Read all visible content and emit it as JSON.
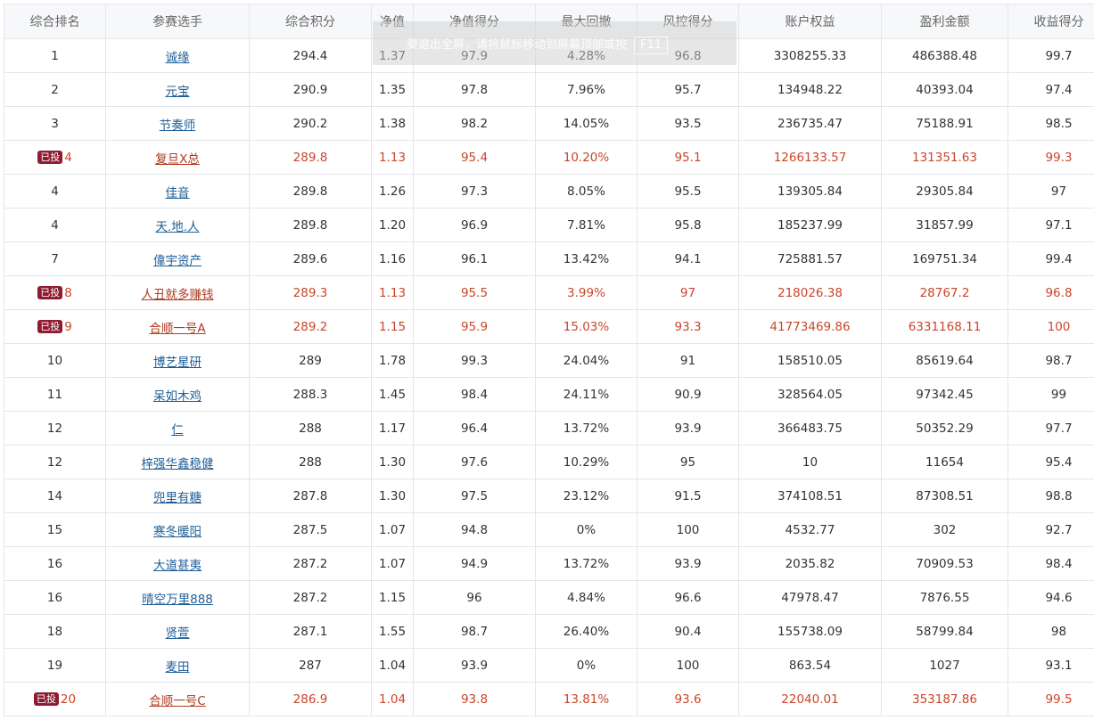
{
  "columns": [
    "综合排名",
    "参赛选手",
    "综合积分",
    "净值",
    "净值得分",
    "最大回撤",
    "风控得分",
    "账户权益",
    "盈利金额",
    "收益得分"
  ],
  "badge_label": "已投",
  "toast": {
    "text": "要退出全屏，请将鼠标移动到屏幕顶部或按",
    "key": "F11"
  },
  "rows": [
    {
      "rank": "1",
      "name": "诚缘",
      "score": "294.4",
      "nav": "1.37",
      "nav_score": "97.9",
      "max_dd": "4.28%",
      "risk": "96.8",
      "equity": "3308255.33",
      "profit": "486388.48",
      "ret": "99.7",
      "hl": false
    },
    {
      "rank": "2",
      "name": "元宝",
      "score": "290.9",
      "nav": "1.35",
      "nav_score": "97.8",
      "max_dd": "7.96%",
      "risk": "95.7",
      "equity": "134948.22",
      "profit": "40393.04",
      "ret": "97.4",
      "hl": false
    },
    {
      "rank": "3",
      "name": "节奏师",
      "score": "290.2",
      "nav": "1.38",
      "nav_score": "98.2",
      "max_dd": "14.05%",
      "risk": "93.5",
      "equity": "236735.47",
      "profit": "75188.91",
      "ret": "98.5",
      "hl": false
    },
    {
      "rank": "4",
      "name": "复旦X总",
      "score": "289.8",
      "nav": "1.13",
      "nav_score": "95.4",
      "max_dd": "10.20%",
      "risk": "95.1",
      "equity": "1266133.57",
      "profit": "131351.63",
      "ret": "99.3",
      "hl": true
    },
    {
      "rank": "4",
      "name": "佳音",
      "score": "289.8",
      "nav": "1.26",
      "nav_score": "97.3",
      "max_dd": "8.05%",
      "risk": "95.5",
      "equity": "139305.84",
      "profit": "29305.84",
      "ret": "97",
      "hl": false
    },
    {
      "rank": "4",
      "name": "天.地.人",
      "score": "289.8",
      "nav": "1.20",
      "nav_score": "96.9",
      "max_dd": "7.81%",
      "risk": "95.8",
      "equity": "185237.99",
      "profit": "31857.99",
      "ret": "97.1",
      "hl": false
    },
    {
      "rank": "7",
      "name": "偉宇资产",
      "score": "289.6",
      "nav": "1.16",
      "nav_score": "96.1",
      "max_dd": "13.42%",
      "risk": "94.1",
      "equity": "725881.57",
      "profit": "169751.34",
      "ret": "99.4",
      "hl": false
    },
    {
      "rank": "8",
      "name": "人丑就多赚钱",
      "score": "289.3",
      "nav": "1.13",
      "nav_score": "95.5",
      "max_dd": "3.99%",
      "risk": "97",
      "equity": "218026.38",
      "profit": "28767.2",
      "ret": "96.8",
      "hl": true
    },
    {
      "rank": "9",
      "name": "合顺一号A",
      "score": "289.2",
      "nav": "1.15",
      "nav_score": "95.9",
      "max_dd": "15.03%",
      "risk": "93.3",
      "equity": "41773469.86",
      "profit": "6331168.11",
      "ret": "100",
      "hl": true
    },
    {
      "rank": "10",
      "name": "博艺星研",
      "score": "289",
      "nav": "1.78",
      "nav_score": "99.3",
      "max_dd": "24.04%",
      "risk": "91",
      "equity": "158510.05",
      "profit": "85619.64",
      "ret": "98.7",
      "hl": false
    },
    {
      "rank": "11",
      "name": "呆如木鸡",
      "score": "288.3",
      "nav": "1.45",
      "nav_score": "98.4",
      "max_dd": "24.11%",
      "risk": "90.9",
      "equity": "328564.05",
      "profit": "97342.45",
      "ret": "99",
      "hl": false
    },
    {
      "rank": "12",
      "name": "仁",
      "score": "288",
      "nav": "1.17",
      "nav_score": "96.4",
      "max_dd": "13.72%",
      "risk": "93.9",
      "equity": "366483.75",
      "profit": "50352.29",
      "ret": "97.7",
      "hl": false
    },
    {
      "rank": "12",
      "name": "梓强华鑫稳健",
      "score": "288",
      "nav": "1.30",
      "nav_score": "97.6",
      "max_dd": "10.29%",
      "risk": "95",
      "equity": "10",
      "profit": "11654",
      "ret": "95.4",
      "hl": false
    },
    {
      "rank": "14",
      "name": "兜里有糖",
      "score": "287.8",
      "nav": "1.30",
      "nav_score": "97.5",
      "max_dd": "23.12%",
      "risk": "91.5",
      "equity": "374108.51",
      "profit": "87308.51",
      "ret": "98.8",
      "hl": false
    },
    {
      "rank": "15",
      "name": "寒冬暖阳",
      "score": "287.5",
      "nav": "1.07",
      "nav_score": "94.8",
      "max_dd": "0%",
      "risk": "100",
      "equity": "4532.77",
      "profit": "302",
      "ret": "92.7",
      "hl": false
    },
    {
      "rank": "16",
      "name": "大道甚夷",
      "score": "287.2",
      "nav": "1.07",
      "nav_score": "94.9",
      "max_dd": "13.72%",
      "risk": "93.9",
      "equity": "2035.82",
      "profit": "70909.53",
      "ret": "98.4",
      "hl": false
    },
    {
      "rank": "16",
      "name": "晴空万里888",
      "score": "287.2",
      "nav": "1.15",
      "nav_score": "96",
      "max_dd": "4.84%",
      "risk": "96.6",
      "equity": "47978.47",
      "profit": "7876.55",
      "ret": "94.6",
      "hl": false
    },
    {
      "rank": "18",
      "name": "贤萱",
      "score": "287.1",
      "nav": "1.55",
      "nav_score": "98.7",
      "max_dd": "26.40%",
      "risk": "90.4",
      "equity": "155738.09",
      "profit": "58799.84",
      "ret": "98",
      "hl": false
    },
    {
      "rank": "19",
      "name": "麦田",
      "score": "287",
      "nav": "1.04",
      "nav_score": "93.9",
      "max_dd": "0%",
      "risk": "100",
      "equity": "863.54",
      "profit": "1027",
      "ret": "93.1",
      "hl": false
    },
    {
      "rank": "20",
      "name": "合顺一号C",
      "score": "286.9",
      "nav": "1.04",
      "nav_score": "93.8",
      "max_dd": "13.81%",
      "risk": "93.6",
      "equity": "22040.01",
      "profit": "353187.86",
      "ret": "99.5",
      "hl": true
    }
  ]
}
